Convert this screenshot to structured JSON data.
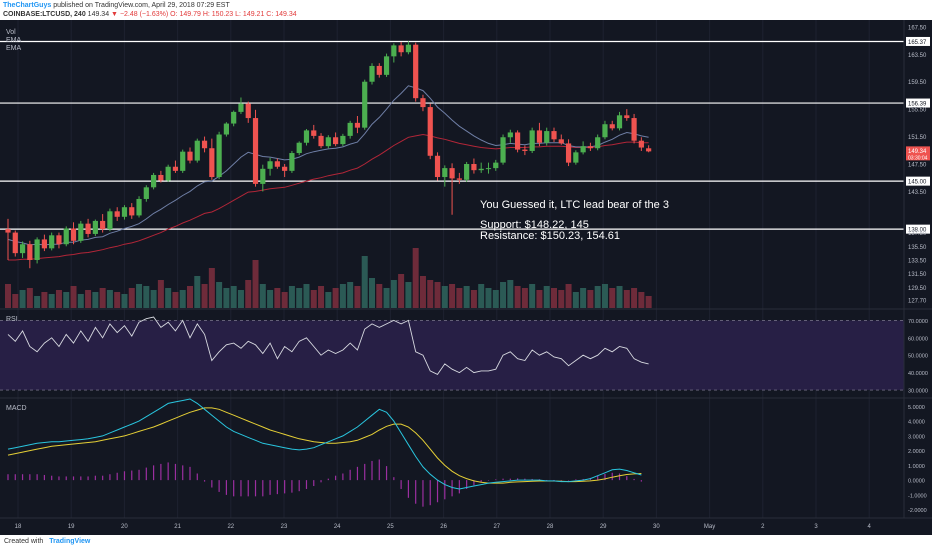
{
  "header": {
    "author": "TheChartGuys",
    "published": "published on TradingView.com, April 29, 2018 07:29 EST",
    "symbol": "COINBASE:LTCUSD, 240",
    "last": "149.34",
    "change_arrow": "▼",
    "change": "−2.48 (−1.63%)",
    "ohlc": "O: 149.79 H: 150.23 L: 149.21 C: 149.34"
  },
  "footer": {
    "created_with": "Created with",
    "brand": "TradingView"
  },
  "colors": {
    "bg": "#131722",
    "up": "#4caf50",
    "down": "#ef5350",
    "vol_up": "#2b5a55",
    "vol_down": "#6e2b3a",
    "ema_fast": "#6f7fa6",
    "ema_slow": "#b22638",
    "rsi": "#d7d9e0",
    "rsi_band": "#271f45",
    "macd": "#29c5de",
    "signal": "#e5cf36",
    "hist": "#9b2fa0",
    "grid": "#1e2230",
    "text": "#b8bcc8",
    "level": "#ffffff"
  },
  "chart_data": [
    {
      "type": "candlestick",
      "panel": "price",
      "legend": [
        "Vol",
        "EMA",
        "EMA"
      ],
      "ylim": [
        126.5,
        168.5
      ],
      "y_ticks": [
        "167.50",
        "165.37",
        "163.50",
        "159.50",
        "156.39",
        "155.50",
        "151.50",
        "149.34",
        "147.50",
        "145.00",
        "143.50",
        "138.00",
        "137.50",
        "135.50",
        "133.50",
        "131.50",
        "129.50",
        "127.70"
      ],
      "price_tag": "149.34",
      "price_tag_sub": "03:30:04",
      "x_labels": [
        "18",
        "19",
        "20",
        "21",
        "22",
        "23",
        "24",
        "25",
        "26",
        "27",
        "28",
        "29",
        "30",
        "May",
        "2",
        "3",
        "4"
      ],
      "horizontal_levels": [
        165.37,
        156.39,
        145.0,
        138.0
      ],
      "annotations": [
        "You Guessed it, LTC lead bear of the 3",
        "Support: $148.22, 145",
        "Resistance: $150.23, 154.61"
      ],
      "ohlc": [
        [
          138,
          139.5,
          133.5,
          137.5
        ],
        [
          137.5,
          137.8,
          134,
          134.5
        ],
        [
          134.5,
          136.2,
          133.8,
          135.8
        ],
        [
          135.8,
          136.3,
          132.3,
          133.5
        ],
        [
          133.5,
          136.8,
          133,
          136.5
        ],
        [
          136.5,
          137.2,
          134.8,
          135.2
        ],
        [
          135.2,
          137.5,
          134.9,
          137.1
        ],
        [
          137.1,
          137.5,
          135.2,
          135.8
        ],
        [
          135.8,
          138.4,
          135.5,
          138.1
        ],
        [
          138.1,
          139,
          135.8,
          136.3
        ],
        [
          136.3,
          139.2,
          136,
          138.8
        ],
        [
          138.8,
          139.5,
          136.8,
          137.3
        ],
        [
          137.3,
          139.4,
          137,
          139.2
        ],
        [
          139.2,
          140.2,
          137.5,
          138
        ],
        [
          138,
          141,
          137.7,
          140.6
        ],
        [
          140.6,
          141.2,
          139.2,
          139.8
        ],
        [
          139.8,
          141.5,
          139.4,
          141.2
        ],
        [
          141.2,
          141.8,
          139.5,
          140
        ],
        [
          140,
          142.8,
          139.7,
          142.4
        ],
        [
          142.4,
          144.4,
          142,
          144.1
        ],
        [
          144.1,
          146.2,
          143.8,
          145.9
        ],
        [
          145.9,
          146.5,
          144.8,
          145.1
        ],
        [
          145.1,
          147.4,
          144.9,
          147.1
        ],
        [
          147.1,
          148,
          146.2,
          146.5
        ],
        [
          146.5,
          149.6,
          146.2,
          149.3
        ],
        [
          149.3,
          149.9,
          147.6,
          148
        ],
        [
          148,
          151.2,
          147.7,
          150.9
        ],
        [
          150.9,
          151.5,
          149.2,
          149.8
        ],
        [
          149.8,
          151.2,
          145.2,
          145.6
        ],
        [
          145.6,
          152.2,
          145.3,
          151.8
        ],
        [
          151.8,
          153.6,
          151.5,
          153.4
        ],
        [
          153.4,
          155.3,
          153,
          155.1
        ],
        [
          155.1,
          157.2,
          154.8,
          156.3
        ],
        [
          156.3,
          156.6,
          153.5,
          154.2
        ],
        [
          154.2,
          155.4,
          144.2,
          144.6
        ],
        [
          144.6,
          147.4,
          143.5,
          146.8
        ],
        [
          146.8,
          148.4,
          145.8,
          147.9
        ],
        [
          147.9,
          148.3,
          146.8,
          147.1
        ],
        [
          147.1,
          147.5,
          145.6,
          146.5
        ],
        [
          146.5,
          149.4,
          146.2,
          149.1
        ],
        [
          149.1,
          150.8,
          148.8,
          150.6
        ],
        [
          150.6,
          152.6,
          150.2,
          152.4
        ],
        [
          152.4,
          153.2,
          151.2,
          151.6
        ],
        [
          151.6,
          152,
          149.8,
          150.1
        ],
        [
          150.1,
          151.7,
          149.8,
          151.4
        ],
        [
          151.4,
          152.1,
          150.1,
          150.4
        ],
        [
          150.4,
          151.9,
          150.1,
          151.6
        ],
        [
          151.6,
          153.8,
          151.2,
          153.5
        ],
        [
          153.5,
          154.5,
          152,
          152.8
        ],
        [
          152.8,
          159.8,
          152.5,
          159.5
        ],
        [
          159.5,
          162.2,
          159.1,
          161.8
        ],
        [
          161.8,
          162.2,
          160.1,
          160.5
        ],
        [
          160.5,
          163.6,
          160.2,
          163.2
        ],
        [
          163.2,
          165.1,
          162.3,
          164.8
        ],
        [
          164.8,
          165.3,
          163.2,
          163.8
        ],
        [
          163.8,
          165.4,
          163.5,
          164.9
        ],
        [
          164.9,
          165.2,
          156.6,
          157.1
        ],
        [
          157.1,
          157.6,
          155.2,
          155.8
        ],
        [
          155.8,
          156.3,
          148.2,
          148.7
        ],
        [
          148.7,
          149.2,
          145.1,
          145.6
        ],
        [
          145.6,
          147.3,
          144.2,
          146.9
        ],
        [
          146.9,
          147.6,
          140.1,
          145.4
        ],
        [
          145.4,
          146.2,
          144.6,
          145.2
        ],
        [
          145.2,
          147.8,
          144.9,
          147.5
        ],
        [
          147.5,
          148.3,
          146.1,
          146.6
        ],
        [
          146.6,
          147.7,
          146.2,
          146.8
        ],
        [
          146.8,
          147.7,
          146.1,
          146.9
        ],
        [
          146.9,
          148.1,
          146.5,
          147.7
        ],
        [
          147.7,
          151.8,
          147.4,
          151.4
        ],
        [
          151.4,
          152.5,
          150.6,
          152.1
        ],
        [
          152.1,
          152.4,
          149.2,
          149.6
        ],
        [
          149.6,
          150.2,
          148.8,
          149.4
        ],
        [
          149.4,
          152.8,
          149.1,
          152.4
        ],
        [
          152.4,
          153.5,
          150.1,
          150.6
        ],
        [
          150.6,
          152.8,
          150.2,
          152.3
        ],
        [
          152.3,
          152.8,
          150.7,
          151.1
        ],
        [
          151.1,
          151.8,
          150.3,
          150.5
        ],
        [
          150.5,
          151.1,
          147.2,
          147.7
        ],
        [
          147.7,
          149.5,
          147.4,
          149.2
        ],
        [
          149.2,
          150.8,
          148.9,
          150.1
        ],
        [
          150.1,
          150.6,
          149.4,
          149.8
        ],
        [
          149.8,
          151.8,
          149.5,
          151.4
        ],
        [
          151.4,
          153.8,
          151.1,
          153.3
        ],
        [
          153.3,
          153.8,
          152.4,
          152.7
        ],
        [
          152.7,
          155.1,
          152.4,
          154.6
        ],
        [
          154.6,
          155.5,
          153.8,
          154.2
        ],
        [
          154.2,
          154.8,
          150.5,
          150.9
        ],
        [
          150.9,
          151.4,
          149.4,
          149.9
        ],
        [
          149.79,
          150.23,
          149.21,
          149.34
        ]
      ],
      "volume": [
        12,
        7,
        9,
        10,
        6,
        8,
        7,
        9,
        8,
        11,
        7,
        9,
        8,
        10,
        9,
        8,
        7,
        10,
        12,
        11,
        9,
        14,
        10,
        8,
        9,
        11,
        16,
        12,
        20,
        13,
        10,
        11,
        9,
        14,
        24,
        12,
        9,
        10,
        8,
        11,
        10,
        12,
        9,
        11,
        8,
        10,
        12,
        13,
        11,
        26,
        15,
        12,
        10,
        14,
        17,
        13,
        30,
        16,
        14,
        13,
        11,
        12,
        10,
        11,
        9,
        12,
        10,
        9,
        13,
        14,
        11,
        10,
        12,
        9,
        11,
        10,
        9,
        12,
        8,
        10,
        9,
        11,
        12,
        10,
        11,
        9,
        10,
        8,
        6
      ],
      "ema_fast": [
        136.5,
        136.2,
        136,
        135.7,
        135.8,
        135.7,
        135.8,
        135.8,
        136.1,
        136.1,
        136.4,
        136.5,
        136.8,
        136.9,
        137.4,
        137.7,
        138.1,
        138.4,
        138.8,
        139.5,
        140.3,
        140.9,
        141.6,
        142.2,
        142.9,
        143.5,
        144.3,
        144.9,
        145.0,
        145.7,
        146.5,
        147.5,
        148.5,
        149.2,
        148.9,
        148.6,
        148.5,
        148.3,
        148.1,
        148.2,
        148.5,
        149.0,
        149.3,
        149.5,
        149.7,
        149.8,
        150.0,
        150.4,
        150.7,
        151.9,
        153.3,
        154.3,
        155.5,
        156.8,
        157.8,
        158.9,
        158.6,
        158.2,
        157.1,
        155.8,
        154.9,
        153.9,
        153.0,
        152.3,
        151.6,
        151.0,
        150.5,
        150.2,
        150.3,
        150.5,
        150.4,
        150.3,
        150.5,
        150.5,
        150.6,
        150.6,
        150.6,
        150.2,
        150.0,
        150.0,
        150.0,
        150.2,
        150.7,
        151.1,
        151.7,
        152.1,
        151.9,
        151.6,
        151.4
      ],
      "ema_slow": [
        133.5,
        133.5,
        133.6,
        133.6,
        133.7,
        133.8,
        133.9,
        134.0,
        134.2,
        134.3,
        134.5,
        134.6,
        134.8,
        135.0,
        135.3,
        135.5,
        135.8,
        136.0,
        136.3,
        136.7,
        137.1,
        137.5,
        138.0,
        138.4,
        138.9,
        139.3,
        139.8,
        140.3,
        140.5,
        141.0,
        141.6,
        142.2,
        142.8,
        143.4,
        143.5,
        143.7,
        143.9,
        144.0,
        144.1,
        144.4,
        144.7,
        145.0,
        145.3,
        145.5,
        145.8,
        146.0,
        146.2,
        146.6,
        146.9,
        147.5,
        148.2,
        148.8,
        149.5,
        150.2,
        150.8,
        151.4,
        151.6,
        151.8,
        151.6,
        151.3,
        151.1,
        150.8,
        150.5,
        150.3,
        150.1,
        149.9,
        149.8,
        149.7,
        149.8,
        149.9,
        149.9,
        149.9,
        150.0,
        150.0,
        150.1,
        150.1,
        150.1,
        150.0,
        149.9,
        149.9,
        149.9,
        150.0,
        150.2,
        150.3,
        150.5,
        150.7,
        150.7,
        150.6,
        150.6
      ]
    },
    {
      "type": "line",
      "panel": "rsi",
      "legend": "RSI",
      "ylim": [
        26,
        76
      ],
      "y_ticks": [
        "70.0000",
        "60.0000",
        "50.0000",
        "40.0000",
        "30.0000"
      ],
      "band": [
        30,
        70
      ],
      "values": [
        62,
        58,
        64,
        55,
        52,
        57,
        60,
        55,
        62,
        57,
        64,
        58,
        66,
        60,
        68,
        63,
        67,
        61,
        69,
        71,
        72,
        66,
        69,
        64,
        70,
        60,
        68,
        62,
        47,
        52,
        56,
        57,
        54,
        58,
        56,
        51,
        57,
        48,
        55,
        52,
        58,
        60,
        55,
        50,
        53,
        51,
        53,
        57,
        53,
        65,
        68,
        66,
        68,
        70,
        68,
        70,
        52,
        50,
        41,
        39,
        45,
        42,
        40,
        43,
        40,
        41,
        41,
        42,
        50,
        52,
        48,
        47,
        53,
        50,
        52,
        49,
        48,
        44,
        47,
        50,
        48,
        50,
        54,
        52,
        55,
        54,
        48,
        46,
        45
      ]
    },
    {
      "type": "macd",
      "panel": "macd",
      "legend": "MACD",
      "ylim": [
        -2.5,
        5.5
      ],
      "y_ticks": [
        "5.0000",
        "4.0000",
        "3.0000",
        "2.0000",
        "1.0000",
        "0.0000",
        "-1.0000",
        "-2.0000"
      ],
      "macd": [
        2.1,
        2.2,
        2.3,
        2.4,
        2.5,
        2.55,
        2.6,
        2.6,
        2.65,
        2.7,
        2.75,
        2.8,
        2.9,
        3.0,
        3.2,
        3.4,
        3.6,
        3.8,
        4.0,
        4.3,
        4.6,
        4.9,
        5.2,
        5.3,
        5.4,
        5.5,
        5.2,
        4.8,
        4.4,
        4.0,
        3.6,
        3.3,
        3.1,
        2.9,
        2.7,
        2.5,
        2.4,
        2.3,
        2.2,
        2.1,
        2.05,
        2.1,
        2.2,
        2.4,
        2.6,
        2.8,
        3.0,
        3.3,
        3.6,
        4.0,
        4.4,
        4.8,
        4.6,
        4.0,
        3.2,
        2.4,
        1.6,
        0.9,
        0.4,
        0.0,
        -0.3,
        -0.5,
        -0.6,
        -0.5,
        -0.4,
        -0.3,
        -0.2,
        -0.15,
        -0.1,
        -0.05,
        0.0,
        0.0,
        0.0,
        0.0,
        -0.05,
        -0.05,
        -0.1,
        -0.1,
        -0.05,
        0.0,
        0.1,
        0.3,
        0.5,
        0.7,
        0.75,
        0.65,
        0.5,
        0.35
      ],
      "signal": [
        1.7,
        1.8,
        1.9,
        2.0,
        2.1,
        2.2,
        2.3,
        2.35,
        2.4,
        2.45,
        2.5,
        2.55,
        2.6,
        2.7,
        2.8,
        2.9,
        3.0,
        3.15,
        3.3,
        3.45,
        3.6,
        3.8,
        4.0,
        4.2,
        4.4,
        4.6,
        4.75,
        4.9,
        4.9,
        4.8,
        4.6,
        4.4,
        4.2,
        4.0,
        3.8,
        3.6,
        3.4,
        3.25,
        3.1,
        2.95,
        2.8,
        2.7,
        2.6,
        2.55,
        2.5,
        2.5,
        2.55,
        2.6,
        2.7,
        2.9,
        3.1,
        3.4,
        3.65,
        3.8,
        3.8,
        3.6,
        3.2,
        2.7,
        2.1,
        1.5,
        1.0,
        0.6,
        0.3,
        0.1,
        -0.05,
        -0.15,
        -0.2,
        -0.2,
        -0.2,
        -0.15,
        -0.12,
        -0.1,
        -0.08,
        -0.06,
        -0.06,
        -0.06,
        -0.08,
        -0.1,
        -0.1,
        -0.08,
        -0.05,
        0.0,
        0.08,
        0.2,
        0.3,
        0.38,
        0.42,
        0.45
      ]
    }
  ]
}
